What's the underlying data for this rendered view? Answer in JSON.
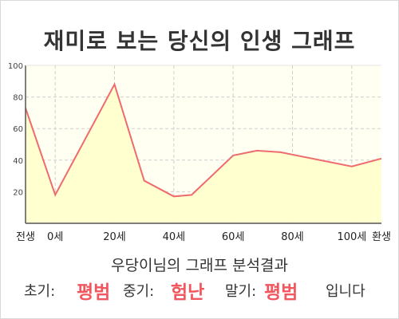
{
  "title": "재미로 보는 당신의 인생 그래프",
  "caption": "우당이님의 그래프 분석결과",
  "summary": {
    "early_label": "초기:",
    "early_value": "평범",
    "mid_label": "중기:",
    "mid_value": "험난",
    "late_label": "말기:",
    "late_value": "평범",
    "ending": "입니다"
  },
  "colors": {
    "line": "#ee6b6f",
    "area": "#ffffcc",
    "plot_bg": "#fffff2",
    "highlight": "#f0575f"
  },
  "chart_data": {
    "type": "area",
    "title": "재미로 보는 당신의 인생 그래프",
    "xlabel": "",
    "ylabel": "",
    "ylim": [
      0,
      100
    ],
    "yticks": [
      20,
      40,
      60,
      80,
      100
    ],
    "xlim": [
      -10,
      110
    ],
    "xticks": [
      {
        "value": -10,
        "label": "전생"
      },
      {
        "value": 0,
        "label": "0세"
      },
      {
        "value": 20,
        "label": "20세"
      },
      {
        "value": 40,
        "label": "40세"
      },
      {
        "value": 60,
        "label": "60세"
      },
      {
        "value": 80,
        "label": "80세"
      },
      {
        "value": 100,
        "label": "100세"
      },
      {
        "value": 110,
        "label": "환생"
      }
    ],
    "grid": true,
    "series": [
      {
        "x": [
          -10,
          0,
          20,
          30,
          40,
          46,
          60,
          68,
          76,
          100,
          110
        ],
        "values": [
          73,
          18,
          88,
          27,
          17,
          18,
          43,
          46,
          45,
          36,
          41
        ]
      }
    ]
  }
}
